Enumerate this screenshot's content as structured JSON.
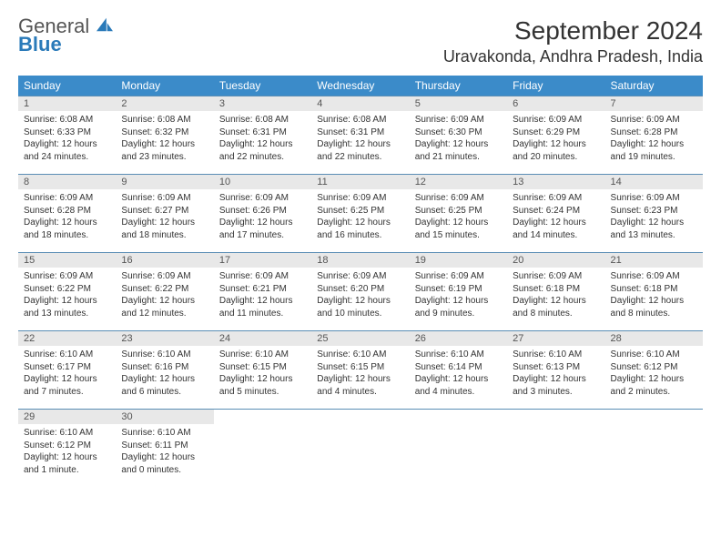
{
  "brand": {
    "name1": "General",
    "name2": "Blue"
  },
  "title": "September 2024",
  "location": "Uravakonda, Andhra Pradesh, India",
  "colors": {
    "header_bg": "#3b8bc9",
    "header_text": "#ffffff",
    "daynum_bg": "#e8e8e8",
    "border": "#5a8db5",
    "brand_blue": "#2a7ab9",
    "text": "#333333"
  },
  "layout": {
    "cols": 7,
    "rows": 5,
    "header_fontsize": 12,
    "body_fontsize": 10,
    "title_fontsize": 28,
    "location_fontsize": 18
  },
  "daynames": [
    "Sunday",
    "Monday",
    "Tuesday",
    "Wednesday",
    "Thursday",
    "Friday",
    "Saturday"
  ],
  "days": [
    {
      "n": "1",
      "sr": "6:08 AM",
      "ss": "6:33 PM",
      "dl": "12 hours and 24 minutes."
    },
    {
      "n": "2",
      "sr": "6:08 AM",
      "ss": "6:32 PM",
      "dl": "12 hours and 23 minutes."
    },
    {
      "n": "3",
      "sr": "6:08 AM",
      "ss": "6:31 PM",
      "dl": "12 hours and 22 minutes."
    },
    {
      "n": "4",
      "sr": "6:08 AM",
      "ss": "6:31 PM",
      "dl": "12 hours and 22 minutes."
    },
    {
      "n": "5",
      "sr": "6:09 AM",
      "ss": "6:30 PM",
      "dl": "12 hours and 21 minutes."
    },
    {
      "n": "6",
      "sr": "6:09 AM",
      "ss": "6:29 PM",
      "dl": "12 hours and 20 minutes."
    },
    {
      "n": "7",
      "sr": "6:09 AM",
      "ss": "6:28 PM",
      "dl": "12 hours and 19 minutes."
    },
    {
      "n": "8",
      "sr": "6:09 AM",
      "ss": "6:28 PM",
      "dl": "12 hours and 18 minutes."
    },
    {
      "n": "9",
      "sr": "6:09 AM",
      "ss": "6:27 PM",
      "dl": "12 hours and 18 minutes."
    },
    {
      "n": "10",
      "sr": "6:09 AM",
      "ss": "6:26 PM",
      "dl": "12 hours and 17 minutes."
    },
    {
      "n": "11",
      "sr": "6:09 AM",
      "ss": "6:25 PM",
      "dl": "12 hours and 16 minutes."
    },
    {
      "n": "12",
      "sr": "6:09 AM",
      "ss": "6:25 PM",
      "dl": "12 hours and 15 minutes."
    },
    {
      "n": "13",
      "sr": "6:09 AM",
      "ss": "6:24 PM",
      "dl": "12 hours and 14 minutes."
    },
    {
      "n": "14",
      "sr": "6:09 AM",
      "ss": "6:23 PM",
      "dl": "12 hours and 13 minutes."
    },
    {
      "n": "15",
      "sr": "6:09 AM",
      "ss": "6:22 PM",
      "dl": "12 hours and 13 minutes."
    },
    {
      "n": "16",
      "sr": "6:09 AM",
      "ss": "6:22 PM",
      "dl": "12 hours and 12 minutes."
    },
    {
      "n": "17",
      "sr": "6:09 AM",
      "ss": "6:21 PM",
      "dl": "12 hours and 11 minutes."
    },
    {
      "n": "18",
      "sr": "6:09 AM",
      "ss": "6:20 PM",
      "dl": "12 hours and 10 minutes."
    },
    {
      "n": "19",
      "sr": "6:09 AM",
      "ss": "6:19 PM",
      "dl": "12 hours and 9 minutes."
    },
    {
      "n": "20",
      "sr": "6:09 AM",
      "ss": "6:18 PM",
      "dl": "12 hours and 8 minutes."
    },
    {
      "n": "21",
      "sr": "6:09 AM",
      "ss": "6:18 PM",
      "dl": "12 hours and 8 minutes."
    },
    {
      "n": "22",
      "sr": "6:10 AM",
      "ss": "6:17 PM",
      "dl": "12 hours and 7 minutes."
    },
    {
      "n": "23",
      "sr": "6:10 AM",
      "ss": "6:16 PM",
      "dl": "12 hours and 6 minutes."
    },
    {
      "n": "24",
      "sr": "6:10 AM",
      "ss": "6:15 PM",
      "dl": "12 hours and 5 minutes."
    },
    {
      "n": "25",
      "sr": "6:10 AM",
      "ss": "6:15 PM",
      "dl": "12 hours and 4 minutes."
    },
    {
      "n": "26",
      "sr": "6:10 AM",
      "ss": "6:14 PM",
      "dl": "12 hours and 4 minutes."
    },
    {
      "n": "27",
      "sr": "6:10 AM",
      "ss": "6:13 PM",
      "dl": "12 hours and 3 minutes."
    },
    {
      "n": "28",
      "sr": "6:10 AM",
      "ss": "6:12 PM",
      "dl": "12 hours and 2 minutes."
    },
    {
      "n": "29",
      "sr": "6:10 AM",
      "ss": "6:12 PM",
      "dl": "12 hours and 1 minute."
    },
    {
      "n": "30",
      "sr": "6:10 AM",
      "ss": "6:11 PM",
      "dl": "12 hours and 0 minutes."
    }
  ],
  "labels": {
    "sunrise": "Sunrise:",
    "sunset": "Sunset:",
    "daylight": "Daylight:"
  }
}
